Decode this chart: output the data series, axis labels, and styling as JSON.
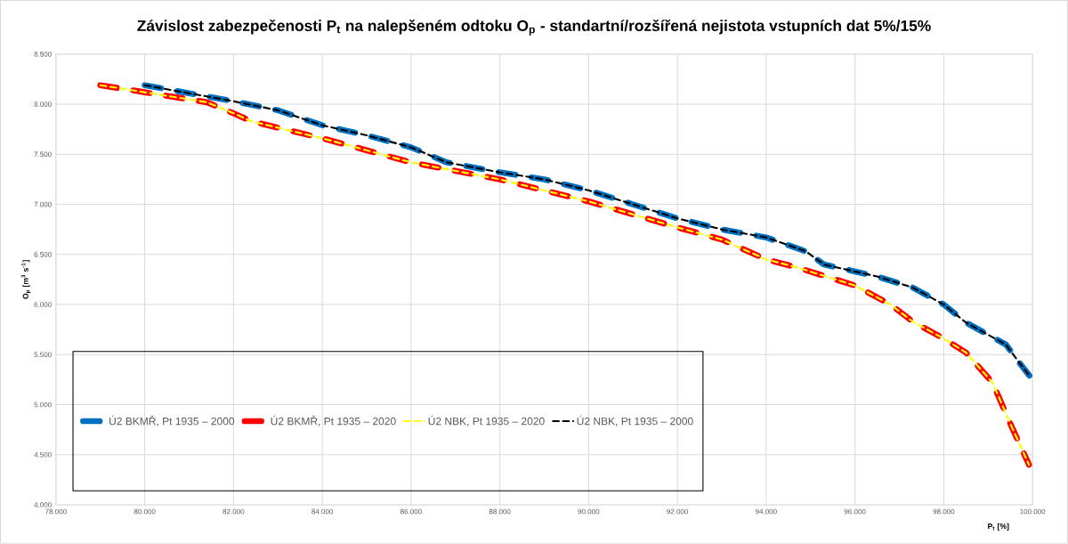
{
  "chart_data": {
    "type": "line",
    "title": "Závislost zabezpečenosti P$_{t}$ na nalepšeném odtoku O$_{p}$  - standartní/rozšířená nejistota vstupních dat 5%/15%",
    "xlabel": "P$_{t}$ [%]",
    "ylabel": "O$_{p}$ [m$^{3}$ s$^{-1}$]",
    "xlim": [
      78,
      100
    ],
    "ylim": [
      4,
      8.5
    ],
    "xticks": [
      {
        "value": 78,
        "label": "78.000"
      },
      {
        "value": 80,
        "label": "80.000"
      },
      {
        "value": 82,
        "label": "82.000"
      },
      {
        "value": 84,
        "label": "84.000"
      },
      {
        "value": 86,
        "label": "86.000"
      },
      {
        "value": 88,
        "label": "88.000"
      },
      {
        "value": 90,
        "label": "90.000"
      },
      {
        "value": 92,
        "label": "92.000"
      },
      {
        "value": 94,
        "label": "94.000"
      },
      {
        "value": 96,
        "label": "96.000"
      },
      {
        "value": 98,
        "label": "98.000"
      },
      {
        "value": 100,
        "label": "100.000"
      }
    ],
    "yticks": [
      {
        "value": 4,
        "label": "4.000"
      },
      {
        "value": 4.5,
        "label": "4.500"
      },
      {
        "value": 5,
        "label": "5.000"
      },
      {
        "value": 5.5,
        "label": "5.500"
      },
      {
        "value": 6,
        "label": "6.000"
      },
      {
        "value": 6.5,
        "label": "6.500"
      },
      {
        "value": 7,
        "label": "7.000"
      },
      {
        "value": 7.5,
        "label": "7.500"
      },
      {
        "value": 8,
        "label": "8.000"
      },
      {
        "value": 8.5,
        "label": "8.500"
      }
    ],
    "grid": true,
    "legend": "bottom left",
    "line_style": "dashed",
    "marker": "none",
    "series": [
      {
        "name": "Ú2 BKMŘ, Pt 1935 – 2000",
        "color": "#0070c0",
        "x": [
          80,
          81,
          82,
          83,
          84,
          85,
          86,
          86.8,
          88,
          89,
          90,
          91,
          92,
          93,
          94,
          94.9,
          95.3,
          96,
          96.5,
          97.3,
          98,
          98.5,
          99.4,
          99.7,
          99.93
        ],
        "values": [
          8.19,
          8.11,
          8.03,
          7.94,
          7.79,
          7.69,
          7.57,
          7.42,
          7.32,
          7.25,
          7.14,
          7.0,
          6.86,
          6.75,
          6.67,
          6.53,
          6.4,
          6.33,
          6.28,
          6.17,
          6.0,
          5.82,
          5.6,
          5.42,
          5.29
        ]
      },
      {
        "name": "Ú2 BKMŘ, Pt 1935 – 2020",
        "color": "#ff0000",
        "x": [
          79,
          80,
          81.4,
          82,
          82.4,
          84,
          86,
          88,
          89,
          90,
          92,
          93,
          94,
          94.7,
          96,
          96.8,
          97.3,
          98,
          98.5,
          99.1,
          99.5,
          99.92
        ],
        "values": [
          8.19,
          8.12,
          8.02,
          7.91,
          7.83,
          7.66,
          7.42,
          7.25,
          7.14,
          7.03,
          6.77,
          6.65,
          6.45,
          6.37,
          6.19,
          6.0,
          5.83,
          5.66,
          5.52,
          5.22,
          4.81,
          4.4
        ]
      },
      {
        "name": "Ú2 NBK, Pt 1935 – 2020",
        "color": "#ffff00",
        "x": [
          79,
          80,
          81.4,
          82,
          82.4,
          84,
          86,
          88,
          89,
          90,
          92,
          93,
          94,
          94.7,
          96,
          96.8,
          97.3,
          98,
          98.5,
          99.1,
          99.5,
          99.92
        ],
        "values": [
          8.19,
          8.12,
          8.02,
          7.91,
          7.83,
          7.66,
          7.42,
          7.25,
          7.14,
          7.03,
          6.77,
          6.65,
          6.45,
          6.37,
          6.19,
          6.0,
          5.83,
          5.66,
          5.52,
          5.22,
          4.81,
          4.4
        ]
      },
      {
        "name": "Ú2 NBK, Pt 1935 – 2000",
        "color": "#000000",
        "x": [
          80,
          81,
          82,
          83,
          84,
          85,
          86,
          86.8,
          88,
          89,
          90,
          91,
          92,
          93,
          94,
          94.9,
          95.3,
          96,
          96.5,
          97.3,
          98,
          98.5,
          99.4,
          99.7,
          99.93
        ],
        "values": [
          8.19,
          8.11,
          8.03,
          7.94,
          7.79,
          7.69,
          7.57,
          7.42,
          7.32,
          7.25,
          7.14,
          7.0,
          6.86,
          6.75,
          6.67,
          6.53,
          6.4,
          6.33,
          6.28,
          6.17,
          6.0,
          5.82,
          5.6,
          5.42,
          5.29
        ]
      }
    ]
  }
}
